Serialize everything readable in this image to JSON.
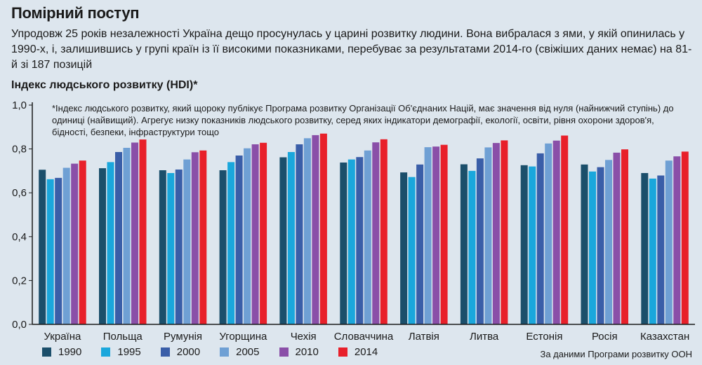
{
  "header": {
    "title": "Помірний поступ",
    "subtitle": "Упродовж 25 років незалежності Україна дещо просунулась у царині розвитку людини. Вона вибралася з ями, у якій опинилась у 1990-х, і, залишившись у групі країн із її високими показниками, перебуває за результатами 2014-го (свіжіших даних немає) на 81-й зі 187 позицій"
  },
  "chart_heading": "Індекс людського розвитку (HDI)*",
  "footnote": "*Індекс людського розвитку, який щороку публікує Програма розвитку Організації Об'єднаних Націй, має значення від нуля (найнижчий ступінь) до одиниці (найвищий). Агрегує низку показників людського розвитку, серед яких індикатори демографії, екології, освіти, рівня охорони здоров'я, бідності, безпеки, інфраструктури тощо",
  "source": "За даними Програми розвитку ООН",
  "chart_data": {
    "type": "bar",
    "title": "Індекс людського розвитку (HDI)*",
    "xlabel": "",
    "ylabel": "",
    "ylim": [
      0,
      1
    ],
    "yticks": [
      "0,0",
      "0,2",
      "0,4",
      "0,6",
      "0,8",
      "1,0"
    ],
    "grid": false,
    "legend_position": "bottom-left",
    "categories": [
      "Україна",
      "Польща",
      "Румунія",
      "Угорщина",
      "Чехія",
      "Словаччина",
      "Латвія",
      "Литва",
      "Естонія",
      "Росія",
      "Казахстан"
    ],
    "series": [
      {
        "name": "1990",
        "color": "#1b4f6b",
        "values": [
          0.705,
          0.712,
          0.703,
          0.703,
          0.762,
          0.738,
          0.693,
          0.73,
          0.726,
          0.729,
          0.69
        ]
      },
      {
        "name": "1995",
        "color": "#1aa7dc",
        "values": [
          0.662,
          0.74,
          0.69,
          0.74,
          0.786,
          0.752,
          0.672,
          0.7,
          0.72,
          0.697,
          0.665
        ]
      },
      {
        "name": "2000",
        "color": "#3a5ea8",
        "values": [
          0.668,
          0.786,
          0.706,
          0.77,
          0.821,
          0.763,
          0.729,
          0.757,
          0.78,
          0.717,
          0.679
        ]
      },
      {
        "name": "2005",
        "color": "#6fa0d4",
        "values": [
          0.714,
          0.805,
          0.752,
          0.803,
          0.849,
          0.793,
          0.808,
          0.807,
          0.825,
          0.75,
          0.747
        ]
      },
      {
        "name": "2010",
        "color": "#8a4fa8",
        "values": [
          0.733,
          0.829,
          0.785,
          0.821,
          0.863,
          0.83,
          0.811,
          0.827,
          0.838,
          0.783,
          0.766
        ]
      },
      {
        "name": "2014",
        "color": "#e8202a",
        "values": [
          0.747,
          0.843,
          0.793,
          0.828,
          0.87,
          0.844,
          0.819,
          0.839,
          0.861,
          0.798,
          0.788
        ]
      }
    ]
  }
}
